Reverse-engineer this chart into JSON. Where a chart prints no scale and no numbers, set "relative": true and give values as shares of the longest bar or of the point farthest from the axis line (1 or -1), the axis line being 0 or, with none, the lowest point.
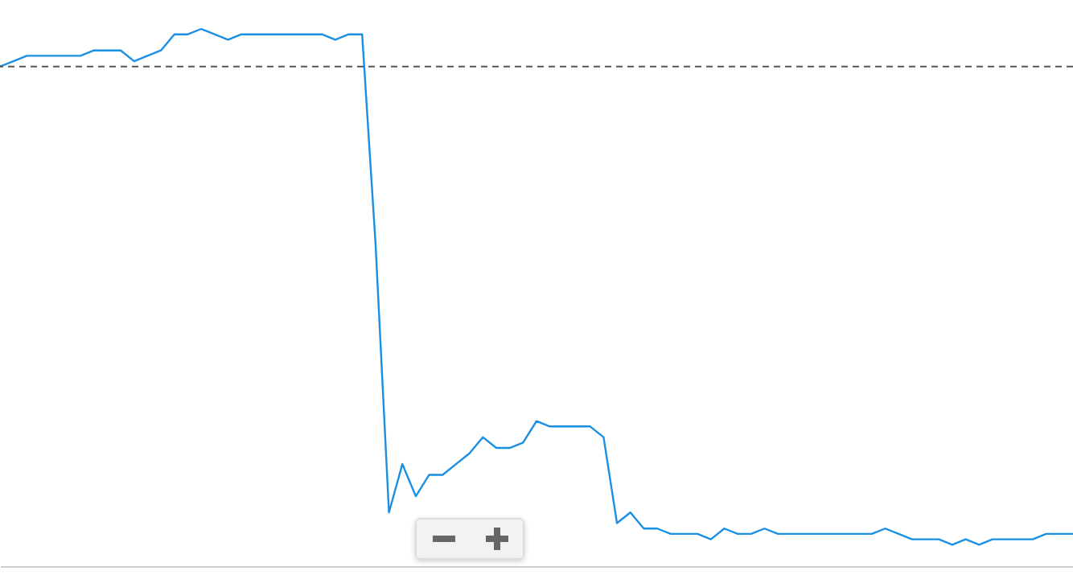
{
  "chart_data": {
    "type": "line",
    "relative": true,
    "color": "#1a8fe3",
    "line_style": "solid",
    "categories": [
      null,
      null,
      null,
      null,
      null,
      null,
      null,
      null,
      null,
      null,
      null,
      null,
      null,
      null,
      null,
      null,
      null,
      null,
      null,
      null,
      null,
      null,
      null,
      null,
      null,
      null,
      null,
      null,
      null,
      null,
      null,
      null,
      null,
      null,
      null,
      null,
      null,
      null,
      null,
      null,
      null,
      null,
      null,
      null,
      null,
      null,
      null,
      null,
      null,
      null,
      null,
      null,
      null,
      null,
      null,
      null,
      null,
      null,
      null,
      null,
      null,
      null,
      null,
      null,
      null,
      null,
      null,
      null,
      null,
      null,
      null,
      null,
      null,
      null,
      null,
      null,
      null,
      null,
      null,
      null,
      null
    ],
    "values": [
      0.93,
      0.94,
      0.95,
      0.95,
      0.95,
      0.95,
      0.95,
      0.96,
      0.96,
      0.96,
      0.94,
      0.95,
      0.96,
      0.99,
      0.99,
      1,
      0.99,
      0.98,
      0.99,
      0.99,
      0.99,
      0.99,
      0.99,
      0.99,
      0.99,
      0.98,
      0.99,
      0.99,
      0.6,
      0.1,
      0.19,
      0.13,
      0.17,
      0.17,
      0.19,
      0.21,
      0.24,
      0.22,
      0.22,
      0.23,
      0.27,
      0.26,
      0.26,
      0.26,
      0.26,
      0.24,
      0.08,
      0.1,
      0.07,
      0.07,
      0.06,
      0.06,
      0.06,
      0.05,
      0.07,
      0.06,
      0.06,
      0.07,
      0.06,
      0.06,
      0.06,
      0.06,
      0.06,
      0.06,
      0.06,
      0.06,
      0.07,
      0.06,
      0.05,
      0.05,
      0.05,
      0.04,
      0.05,
      0.04,
      0.05,
      0.05,
      0.05,
      0.05,
      0.06,
      0.06,
      0.06
    ],
    "ref_lines": [
      {
        "axis": "y",
        "value": 0.93,
        "line_style": "dashed",
        "color": "#555555"
      }
    ]
  }
}
